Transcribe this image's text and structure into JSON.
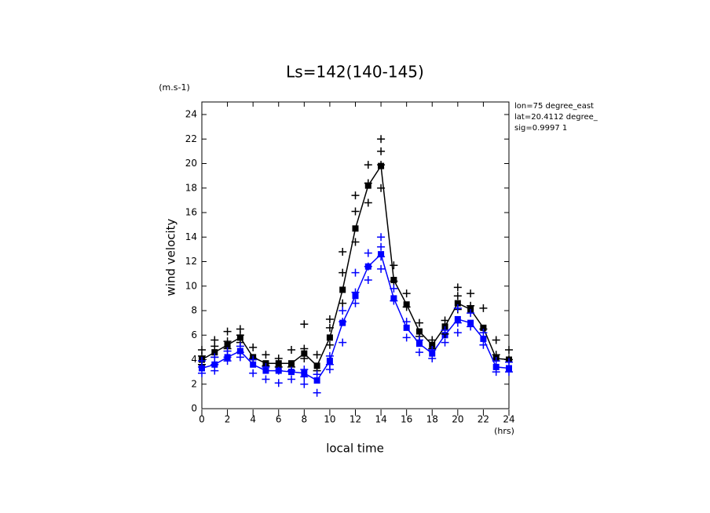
{
  "chart_data": {
    "type": "line",
    "title": "Ls=142(140-145)",
    "y_label": "wind velocity",
    "x_label": "local time",
    "y_unit": "(m.s-1)",
    "x_unit": "(hrs)",
    "annotations": [
      "lon=75 degree_east",
      "lat=20.4112 degree_",
      "sig=0.9997 1"
    ],
    "xlim": [
      0,
      24
    ],
    "ylim": [
      0,
      24
    ],
    "xticks": [
      0,
      2,
      4,
      6,
      8,
      10,
      12,
      14,
      16,
      18,
      20,
      22,
      24
    ],
    "yticks": [
      0,
      2,
      4,
      6,
      8,
      10,
      12,
      14,
      16,
      18,
      20,
      22,
      24
    ],
    "series": [
      {
        "color": "#000000",
        "marker": "square",
        "x": [
          0,
          1,
          2,
          3,
          4,
          5,
          6,
          7,
          8,
          9,
          10,
          11,
          12,
          13,
          14,
          15,
          16,
          17,
          18,
          19,
          20,
          21,
          22,
          23,
          24
        ],
        "values": [
          4.0,
          4.6,
          5.2,
          5.8,
          4.2,
          3.7,
          3.7,
          3.7,
          4.5,
          3.5,
          5.8,
          9.7,
          14.7,
          18.2,
          19.8,
          10.5,
          8.5,
          6.3,
          5.2,
          6.7,
          8.6,
          8.1,
          6.6,
          4.1,
          4.0
        ]
      },
      {
        "color": "#0000ff",
        "marker": "square",
        "x": [
          0,
          1,
          2,
          3,
          4,
          5,
          6,
          7,
          8,
          9,
          10,
          11,
          12,
          13,
          14,
          15,
          16,
          17,
          18,
          19,
          20,
          21,
          22,
          23,
          24
        ],
        "values": [
          3.3,
          3.6,
          4.2,
          4.7,
          3.6,
          3.1,
          3.1,
          3.0,
          2.9,
          2.3,
          3.9,
          7.0,
          9.2,
          11.6,
          12.6,
          9.0,
          6.6,
          5.3,
          4.5,
          6.0,
          7.3,
          7.0,
          5.7,
          3.4,
          3.3
        ]
      },
      {
        "color": "#000000",
        "marker": "cross",
        "x": [
          0,
          0,
          0,
          1,
          1,
          1,
          2,
          2,
          2,
          3,
          3,
          3,
          4,
          4,
          5,
          5,
          6,
          6,
          7,
          7,
          8,
          8,
          8,
          9,
          9,
          10,
          10,
          10,
          11,
          11,
          11,
          12,
          12,
          12,
          13,
          13,
          13,
          14,
          14,
          14,
          14,
          15,
          15,
          16,
          16,
          17,
          17,
          18,
          18,
          19,
          19,
          20,
          20,
          20,
          21,
          21,
          22,
          22,
          23,
          23,
          24,
          24
        ],
        "values": [
          4.8,
          4.3,
          3.6,
          5.6,
          5.1,
          4.2,
          6.3,
          5.5,
          4.9,
          6.5,
          6.0,
          5.4,
          5.0,
          4.1,
          4.4,
          3.5,
          4.1,
          3.4,
          4.8,
          3.4,
          6.9,
          4.9,
          4.1,
          4.4,
          3.1,
          7.3,
          6.6,
          5.2,
          12.8,
          11.1,
          8.6,
          17.4,
          16.1,
          13.6,
          19.9,
          18.4,
          16.8,
          22.0,
          21.0,
          19.9,
          18.0,
          11.7,
          10.4,
          9.4,
          8.3,
          7.0,
          5.9,
          5.6,
          4.9,
          7.2,
          6.1,
          9.9,
          9.2,
          8.1,
          9.4,
          8.4,
          8.2,
          6.5,
          5.6,
          4.4,
          4.8,
          4.0
        ]
      },
      {
        "color": "#0000ff",
        "marker": "cross",
        "x": [
          0,
          0,
          0,
          1,
          1,
          1,
          2,
          2,
          2,
          3,
          3,
          3,
          4,
          4,
          5,
          5,
          6,
          6,
          7,
          7,
          8,
          8,
          8,
          9,
          9,
          10,
          10,
          10,
          11,
          11,
          11,
          12,
          12,
          12,
          13,
          13,
          13,
          14,
          14,
          14,
          14,
          15,
          15,
          16,
          16,
          17,
          17,
          18,
          18,
          19,
          19,
          20,
          20,
          20,
          21,
          21,
          22,
          22,
          23,
          23,
          24,
          24
        ],
        "values": [
          3.9,
          3.4,
          2.9,
          4.2,
          3.6,
          3.1,
          4.7,
          4.2,
          3.9,
          5.1,
          4.6,
          4.2,
          4.0,
          2.9,
          3.4,
          2.4,
          3.1,
          2.1,
          3.1,
          2.4,
          3.2,
          2.6,
          2.0,
          2.8,
          1.3,
          4.3,
          3.6,
          3.2,
          8.0,
          7.1,
          5.4,
          11.1,
          9.5,
          8.6,
          12.7,
          11.6,
          10.5,
          14.0,
          13.2,
          12.4,
          11.4,
          9.8,
          8.8,
          7.1,
          5.8,
          5.6,
          4.6,
          4.8,
          4.1,
          6.4,
          5.4,
          8.2,
          7.0,
          6.2,
          7.8,
          6.7,
          6.2,
          5.2,
          3.9,
          3.0,
          3.8,
          3.0
        ]
      }
    ]
  }
}
